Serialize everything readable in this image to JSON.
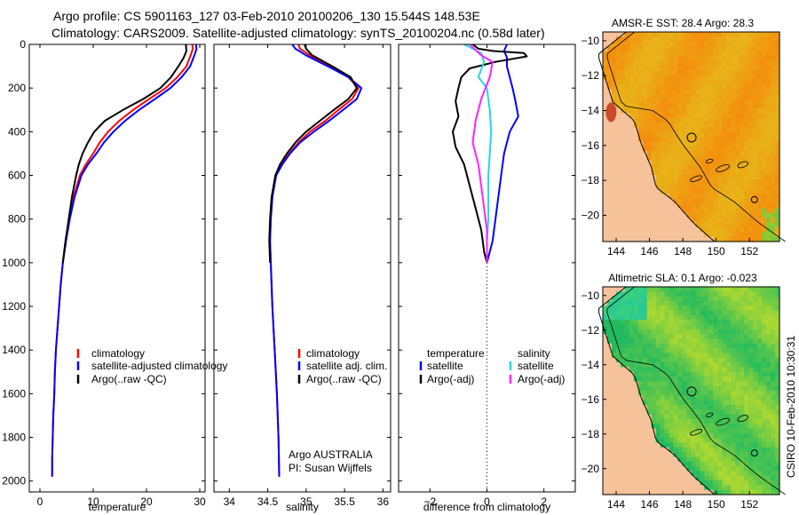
{
  "header": {
    "line1": "Argo profile: CS 5901163_127 03-Feb-2010 20100206_130 15.544S 148.53E",
    "line2": "Climatology: CARS2009. Satellite-adjusted climatology: synTS_20100204.nc (0.58d later)"
  },
  "colors": {
    "climatology": "#ff0000",
    "satellite": "#0000ff",
    "argo": "#000000",
    "sal_satellite": "#22d8e0",
    "sal_argo": "#ff22ff"
  },
  "chart_data": [
    {
      "type": "line",
      "id": "temperature",
      "xlabel": "temperature",
      "xlim": [
        -2,
        31
      ],
      "ylim": [
        2050,
        0
      ],
      "xticks": [
        0,
        10,
        20,
        30
      ],
      "yticks": [
        0,
        200,
        400,
        600,
        800,
        1000,
        1200,
        1400,
        1600,
        1800,
        2000
      ],
      "legend": [
        "climatology",
        "satellite-adjusted climatology",
        "Argo(..raw -QC)"
      ],
      "series": [
        {
          "name": "climatology",
          "color": "#ff0000",
          "points": [
            [
              28.6,
              0
            ],
            [
              28.7,
              20
            ],
            [
              28.3,
              50
            ],
            [
              27.5,
              100
            ],
            [
              25.8,
              150
            ],
            [
              23.6,
              200
            ],
            [
              20.5,
              250
            ],
            [
              17.5,
              300
            ],
            [
              14.9,
              350
            ],
            [
              12.8,
              400
            ],
            [
              11.2,
              450
            ],
            [
              10.0,
              500
            ],
            [
              8.6,
              550
            ],
            [
              7.5,
              600
            ],
            [
              6.3,
              700
            ],
            [
              5.5,
              800
            ],
            [
              4.8,
              900
            ],
            [
              4.3,
              1000
            ],
            [
              3.9,
              1100
            ],
            [
              3.6,
              1200
            ],
            [
              3.3,
              1300
            ],
            [
              3.0,
              1400
            ],
            [
              2.8,
              1500
            ],
            [
              2.7,
              1600
            ],
            [
              2.5,
              1700
            ],
            [
              2.4,
              1800
            ],
            [
              2.3,
              1900
            ],
            [
              2.3,
              1980
            ]
          ]
        },
        {
          "name": "satellite-adjusted climatology",
          "color": "#0000ff",
          "points": [
            [
              29.3,
              0
            ],
            [
              29.4,
              20
            ],
            [
              29.0,
              50
            ],
            [
              28.2,
              100
            ],
            [
              26.6,
              150
            ],
            [
              24.5,
              200
            ],
            [
              21.6,
              250
            ],
            [
              18.6,
              300
            ],
            [
              16.0,
              350
            ],
            [
              13.8,
              400
            ],
            [
              12.0,
              450
            ],
            [
              10.6,
              500
            ],
            [
              9.0,
              550
            ],
            [
              7.8,
              600
            ],
            [
              6.5,
              700
            ],
            [
              5.6,
              800
            ],
            [
              4.9,
              900
            ],
            [
              4.3,
              1000
            ],
            [
              3.9,
              1100
            ],
            [
              3.6,
              1200
            ],
            [
              3.3,
              1300
            ],
            [
              3.0,
              1400
            ],
            [
              2.8,
              1500
            ],
            [
              2.7,
              1600
            ],
            [
              2.5,
              1700
            ],
            [
              2.4,
              1800
            ],
            [
              2.3,
              1900
            ],
            [
              2.3,
              1980
            ]
          ]
        },
        {
          "name": "Argo(..raw -QC)",
          "color": "#000000",
          "points": [
            [
              27.4,
              0
            ],
            [
              27.5,
              30
            ],
            [
              27.0,
              60
            ],
            [
              26.0,
              100
            ],
            [
              24.6,
              150
            ],
            [
              22.6,
              200
            ],
            [
              19.4,
              250
            ],
            [
              15.6,
              300
            ],
            [
              12.2,
              350
            ],
            [
              10.2,
              400
            ],
            [
              9.0,
              450
            ],
            [
              8.0,
              500
            ],
            [
              7.3,
              550
            ],
            [
              6.8,
              600
            ],
            [
              6.0,
              700
            ],
            [
              5.4,
              800
            ],
            [
              4.8,
              900
            ],
            [
              4.3,
              1000
            ]
          ]
        }
      ]
    },
    {
      "type": "line",
      "id": "salinity",
      "xlabel": "salinity",
      "xlim": [
        33.8,
        36.1
      ],
      "ylim": [
        2050,
        0
      ],
      "xticks": [
        34,
        34.5,
        35,
        35.5,
        36
      ],
      "xtick_labels": [
        "34",
        "34.5",
        "35",
        "35.5",
        "36"
      ],
      "legend": [
        "climatology",
        "satellite adj. clim.",
        "Argo(..raw -QC)"
      ],
      "annotation": [
        "Argo AUSTRALIA",
        "PI: Susan Wijffels"
      ],
      "series": [
        {
          "name": "climatology",
          "color": "#ff0000",
          "points": [
            [
              34.9,
              0
            ],
            [
              34.92,
              20
            ],
            [
              35.05,
              50
            ],
            [
              35.3,
              100
            ],
            [
              35.55,
              150
            ],
            [
              35.68,
              200
            ],
            [
              35.6,
              250
            ],
            [
              35.42,
              300
            ],
            [
              35.25,
              350
            ],
            [
              35.05,
              400
            ],
            [
              34.9,
              450
            ],
            [
              34.78,
              500
            ],
            [
              34.68,
              550
            ],
            [
              34.6,
              600
            ],
            [
              34.56,
              700
            ],
            [
              34.54,
              800
            ],
            [
              34.53,
              900
            ],
            [
              34.54,
              1000
            ],
            [
              34.56,
              1200
            ],
            [
              34.59,
              1400
            ],
            [
              34.62,
              1600
            ],
            [
              34.64,
              1800
            ],
            [
              34.65,
              1980
            ]
          ]
        },
        {
          "name": "satellite adj. clim.",
          "color": "#0000ff",
          "points": [
            [
              34.82,
              0
            ],
            [
              34.86,
              20
            ],
            [
              35.0,
              50
            ],
            [
              35.28,
              100
            ],
            [
              35.55,
              150
            ],
            [
              35.72,
              200
            ],
            [
              35.66,
              250
            ],
            [
              35.48,
              300
            ],
            [
              35.3,
              350
            ],
            [
              35.1,
              400
            ],
            [
              34.92,
              450
            ],
            [
              34.79,
              500
            ],
            [
              34.69,
              550
            ],
            [
              34.61,
              600
            ],
            [
              34.56,
              700
            ],
            [
              34.54,
              800
            ],
            [
              34.53,
              900
            ],
            [
              34.54,
              1000
            ],
            [
              34.56,
              1200
            ],
            [
              34.59,
              1400
            ],
            [
              34.62,
              1600
            ],
            [
              34.64,
              1800
            ],
            [
              34.65,
              1980
            ]
          ]
        },
        {
          "name": "Argo(..raw -QC)",
          "color": "#000000",
          "points": [
            [
              34.98,
              0
            ],
            [
              35.0,
              20
            ],
            [
              35.08,
              50
            ],
            [
              35.34,
              100
            ],
            [
              35.58,
              150
            ],
            [
              35.66,
              200
            ],
            [
              35.55,
              250
            ],
            [
              35.36,
              300
            ],
            [
              35.18,
              350
            ],
            [
              35.0,
              400
            ],
            [
              34.86,
              450
            ],
            [
              34.75,
              500
            ],
            [
              34.66,
              550
            ],
            [
              34.6,
              600
            ],
            [
              34.55,
              700
            ],
            [
              34.53,
              800
            ],
            [
              34.52,
              900
            ],
            [
              34.53,
              1000
            ]
          ]
        }
      ]
    },
    {
      "type": "line",
      "id": "difference",
      "xlabel": "difference from climatology",
      "xlim": [
        -3.1,
        3.1
      ],
      "ylim": [
        2050,
        0
      ],
      "xticks": [
        -2,
        0,
        2
      ],
      "legend_temperature_header": "temperature",
      "legend_salinity_header": "salinity",
      "legend": [
        "satellite",
        "Argo(-adj)",
        "satellite",
        "Argo(-adj)"
      ],
      "series": [
        {
          "name": "temperature satellite",
          "color": "#0000ff",
          "points": [
            [
              0.7,
              0
            ],
            [
              0.6,
              30
            ],
            [
              0.7,
              60
            ],
            [
              0.7,
              100
            ],
            [
              0.8,
              150
            ],
            [
              0.9,
              200
            ],
            [
              1.0,
              260
            ],
            [
              1.1,
              330
            ],
            [
              0.8,
              400
            ],
            [
              0.6,
              500
            ],
            [
              0.5,
              600
            ],
            [
              0.4,
              700
            ],
            [
              0.3,
              800
            ],
            [
              0.2,
              900
            ],
            [
              0.1,
              950
            ],
            [
              0.0,
              1000
            ]
          ]
        },
        {
          "name": "temperature Argo(-adj)",
          "color": "#000000",
          "points": [
            [
              -0.5,
              0
            ],
            [
              -0.3,
              20
            ],
            [
              0.2,
              30
            ],
            [
              1.3,
              40
            ],
            [
              1.4,
              55
            ],
            [
              0.3,
              80
            ],
            [
              -0.6,
              110
            ],
            [
              -0.9,
              150
            ],
            [
              -1.0,
              200
            ],
            [
              -1.1,
              260
            ],
            [
              -1.0,
              330
            ],
            [
              -1.2,
              400
            ],
            [
              -1.1,
              470
            ],
            [
              -0.8,
              550
            ],
            [
              -0.6,
              650
            ],
            [
              -0.4,
              750
            ],
            [
              -0.2,
              850
            ],
            [
              -0.1,
              950
            ],
            [
              0.0,
              1000
            ]
          ]
        },
        {
          "name": "salinity satellite",
          "color": "#22d8e0",
          "points": [
            [
              -0.8,
              0
            ],
            [
              -0.5,
              20
            ],
            [
              -0.2,
              40
            ],
            [
              -0.1,
              80
            ],
            [
              -0.3,
              150
            ],
            [
              0.0,
              200
            ],
            [
              0.1,
              300
            ],
            [
              0.15,
              400
            ],
            [
              0.1,
              500
            ],
            [
              0.05,
              600
            ],
            [
              0.05,
              700
            ],
            [
              0.05,
              800
            ],
            [
              0.0,
              900
            ],
            [
              0.0,
              1000
            ]
          ]
        },
        {
          "name": "salinity Argo(-adj)",
          "color": "#ff22ff",
          "points": [
            [
              -0.6,
              0
            ],
            [
              -0.2,
              50
            ],
            [
              0.2,
              80
            ],
            [
              0.1,
              150
            ],
            [
              -0.2,
              250
            ],
            [
              -0.4,
              350
            ],
            [
              -0.5,
              450
            ],
            [
              -0.3,
              550
            ],
            [
              -0.2,
              650
            ],
            [
              -0.1,
              750
            ],
            [
              0.0,
              850
            ],
            [
              0.0,
              1000
            ]
          ]
        }
      ]
    },
    {
      "type": "heatmap",
      "id": "sst_map",
      "title": "AMSR-E SST: 28.4 Argo: 28.3",
      "xlim": [
        143.2,
        153.8
      ],
      "ylim": [
        -21.5,
        -9.5
      ],
      "xticks": [
        144,
        146,
        148,
        150,
        152
      ],
      "yticks": [
        -10,
        -12,
        -14,
        -16,
        -18,
        -20
      ],
      "marker": {
        "lon": 148.53,
        "lat": -15.544
      },
      "second_marker": {
        "lon": 152.3,
        "lat": -19.1
      }
    },
    {
      "type": "heatmap",
      "id": "sla_map",
      "title": "Altimetric SLA: 0.1 Argo: -0.023",
      "xlim": [
        143.2,
        153.8
      ],
      "ylim": [
        -21.5,
        -9.5
      ],
      "xticks": [
        144,
        146,
        148,
        150,
        152
      ],
      "yticks": [
        -10,
        -12,
        -14,
        -16,
        -18,
        -20
      ],
      "marker": {
        "lon": 148.53,
        "lat": -15.544
      },
      "second_marker": {
        "lon": 152.3,
        "lat": -19.1
      }
    }
  ],
  "credit": "CSIRO 10-Feb-2010 10:30:31"
}
